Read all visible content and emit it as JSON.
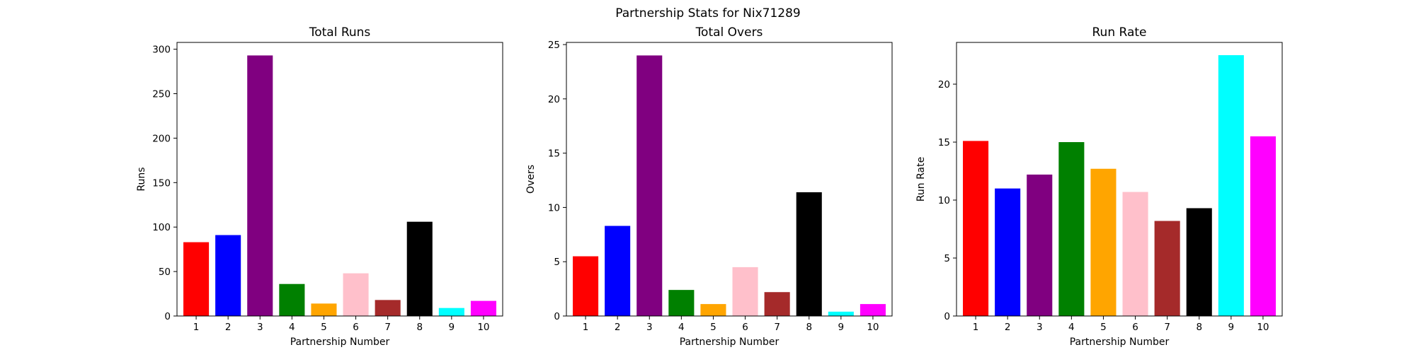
{
  "figure": {
    "suptitle": "Partnership Stats for Nix71289"
  },
  "chart_data": [
    {
      "type": "bar",
      "title": "Total Runs",
      "xlabel": "Partnership Number",
      "ylabel": "Runs",
      "categories": [
        "1",
        "2",
        "3",
        "4",
        "5",
        "6",
        "7",
        "8",
        "9",
        "10"
      ],
      "values": [
        83,
        91,
        293,
        36,
        14,
        48,
        18,
        106,
        9,
        17
      ],
      "colors": [
        "#ff0000",
        "#0000ff",
        "#800080",
        "#008000",
        "#ffa500",
        "#ffc0cb",
        "#a52a2a",
        "#000000",
        "#00ffff",
        "#ff00ff"
      ],
      "ylim": [
        0,
        307.65
      ],
      "yticks": [
        0,
        50,
        100,
        150,
        200,
        250,
        300
      ],
      "grid": false
    },
    {
      "type": "bar",
      "title": "Total Overs",
      "xlabel": "Partnership Number",
      "ylabel": "Overs",
      "categories": [
        "1",
        "2",
        "3",
        "4",
        "5",
        "6",
        "7",
        "8",
        "9",
        "10"
      ],
      "values": [
        5.5,
        8.3,
        24.0,
        2.4,
        1.1,
        4.5,
        2.2,
        11.4,
        0.4,
        1.1
      ],
      "colors": [
        "#ff0000",
        "#0000ff",
        "#800080",
        "#008000",
        "#ffa500",
        "#ffc0cb",
        "#a52a2a",
        "#000000",
        "#00ffff",
        "#ff00ff"
      ],
      "ylim": [
        0,
        25.2
      ],
      "yticks": [
        0,
        5,
        10,
        15,
        20,
        25
      ],
      "grid": false
    },
    {
      "type": "bar",
      "title": "Run Rate",
      "xlabel": "Partnership Number",
      "ylabel": "Run Rate",
      "categories": [
        "1",
        "2",
        "3",
        "4",
        "5",
        "6",
        "7",
        "8",
        "9",
        "10"
      ],
      "values": [
        15.1,
        11.0,
        12.2,
        15.0,
        12.7,
        10.7,
        8.2,
        9.3,
        22.5,
        15.5
      ],
      "colors": [
        "#ff0000",
        "#0000ff",
        "#800080",
        "#008000",
        "#ffa500",
        "#ffc0cb",
        "#a52a2a",
        "#000000",
        "#00ffff",
        "#ff00ff"
      ],
      "ylim": [
        0,
        23.6
      ],
      "yticks": [
        0,
        5,
        10,
        15,
        20
      ],
      "grid": false
    }
  ]
}
